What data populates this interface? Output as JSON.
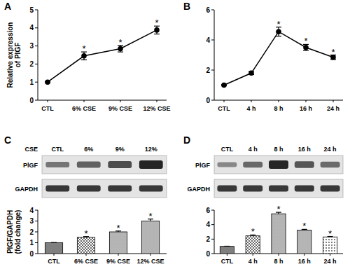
{
  "chart_data": [
    {
      "type": "line",
      "title": "A",
      "y_label": [
        "Relative expression",
        "of PlGF"
      ],
      "categories": [
        "CTL",
        "6% CSE",
        "9% CSE",
        "12% CSE"
      ],
      "values": [
        1,
        2.45,
        2.85,
        3.88
      ],
      "errors": [
        0.03,
        0.22,
        0.18,
        0.22
      ],
      "significance": [
        null,
        "*",
        "*",
        "*"
      ],
      "ylim": [
        0,
        5
      ],
      "yticks": [
        0,
        1,
        2,
        3,
        4,
        5
      ],
      "color": "#000000",
      "marker": "circle"
    },
    {
      "type": "line",
      "title": "B",
      "categories": [
        "CTL",
        "4 h",
        "8 h",
        "16 h",
        "24 h"
      ],
      "values": [
        1,
        1.8,
        4.55,
        3.5,
        2.85
      ],
      "errors": [
        0.03,
        0.1,
        0.3,
        0.2,
        0.15
      ],
      "significance": [
        null,
        null,
        "*",
        "*",
        "*"
      ],
      "ylim": [
        0,
        6
      ],
      "yticks": [
        0,
        2,
        4,
        6
      ],
      "color": "#000000",
      "marker": "circle"
    },
    {
      "type": "bar",
      "title": "C",
      "y_label": [
        "PlGF/GAPDH",
        "(fold change)"
      ],
      "blot": {
        "header": "CSE",
        "lanes": [
          "CTL",
          "6%",
          "9%",
          "12%"
        ],
        "rows": [
          "PlGF",
          "GAPDH"
        ]
      },
      "categories": [
        "CTL",
        "6% CSE",
        "9% CSE",
        "12% CSE"
      ],
      "values": [
        1,
        1.5,
        2.0,
        3.0
      ],
      "errors": [
        0.02,
        0.07,
        0.08,
        0.18
      ],
      "significance": [
        null,
        "*",
        "*",
        "*"
      ],
      "ylim": [
        0,
        4
      ],
      "yticks": [
        0,
        1,
        2,
        3,
        4
      ],
      "colors": [
        "#7f7f7f",
        "#444444",
        "#444444",
        "#444444"
      ]
    },
    {
      "type": "bar",
      "title": "D",
      "blot": {
        "lanes": [
          "CTL",
          "4 h",
          "8 h",
          "16 h",
          "24 h"
        ],
        "rows": [
          "PlGF",
          "GAPDH"
        ]
      },
      "categories": [
        "CTL",
        "4 h",
        "8 h",
        "16 h",
        "24 h"
      ],
      "values": [
        1,
        2.45,
        5.5,
        3.25,
        2.3
      ],
      "errors": [
        0.02,
        0.12,
        0.2,
        0.1,
        0.07
      ],
      "significance": [
        null,
        "*",
        "*",
        "*",
        "*"
      ],
      "ylim": [
        0,
        6
      ],
      "yticks": [
        0,
        2,
        4,
        6
      ],
      "colors": [
        "#7f7f7f",
        "#444444",
        "#444444",
        "#444444",
        "#444444"
      ]
    }
  ]
}
